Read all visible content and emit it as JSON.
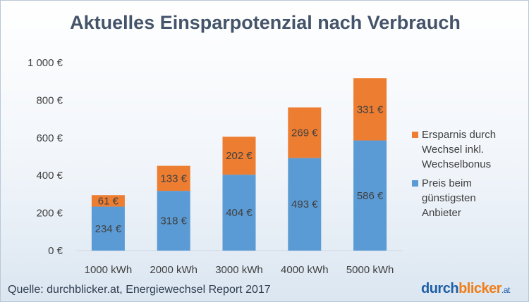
{
  "chart_data": {
    "type": "bar",
    "stacked": true,
    "title": "Aktuelles Einsparpotenzial nach Verbrauch",
    "categories": [
      "1000 kWh",
      "2000 kWh",
      "3000 kWh",
      "4000 kWh",
      "5000 kWh"
    ],
    "series": [
      {
        "name": "Preis beim günstigsten Anbieter",
        "values": [
          234,
          318,
          404,
          493,
          586
        ],
        "labels": [
          "234 €",
          "318 €",
          "404 €",
          "493 €",
          "586 €"
        ],
        "color": "#5b9bd5"
      },
      {
        "name": "Ersparnis durch Wechsel inkl. Wechselbonus",
        "values": [
          61,
          133,
          202,
          269,
          331
        ],
        "labels": [
          "61 €",
          "133 €",
          "202 €",
          "269 €",
          "331 €"
        ],
        "color": "#ed7d31"
      }
    ],
    "ylim": [
      0,
      1000
    ],
    "yticks": [
      0,
      200,
      400,
      600,
      800,
      1000
    ],
    "ytick_labels": [
      "0 €",
      "200 €",
      "400 €",
      "600 €",
      "800 €",
      "1 000 €"
    ],
    "grid": false,
    "legend_position": "right"
  },
  "legend": {
    "items": [
      {
        "label_lines": [
          "Ersparnis durch",
          "Wechsel inkl.",
          "Wechselbonus"
        ],
        "color": "#ed7d31"
      },
      {
        "label_lines": [
          "Preis beim",
          "günstigsten",
          "Anbieter"
        ],
        "color": "#5b9bd5"
      }
    ]
  },
  "source": "Quelle: durchblicker.at, Energiewechsel Report 2017",
  "logo": {
    "main": "durch",
    "accent": "blicker",
    "suffix": ".at"
  }
}
